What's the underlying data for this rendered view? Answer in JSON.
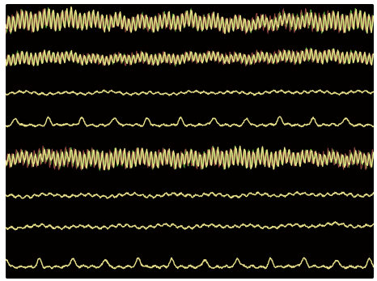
{
  "colors": {
    "background": "#020100",
    "frame": "#ffffff",
    "trace": "#e9e08a",
    "overlay_green": "#5fb83a",
    "overlay_red": "#c9605a"
  },
  "chart_data": {
    "type": "line",
    "title": "",
    "xlabel": "",
    "ylabel": "",
    "grid": false,
    "legend": "none",
    "n_channels": 8,
    "x_range": [
      0,
      100
    ],
    "channels": [
      {
        "index": 0,
        "rhythm": "fast-high-amplitude",
        "overlay": true,
        "amplitude": 1.0,
        "x": [
          0,
          5,
          10,
          15,
          20,
          25,
          30,
          35,
          40,
          45,
          50,
          55,
          60,
          65,
          70,
          75,
          80,
          85,
          90,
          95,
          100
        ],
        "baseline": [
          0.2,
          0.5,
          0.7,
          0.9,
          0.8,
          0.5,
          0.3,
          0.1,
          0.2,
          0.4,
          0.7,
          0.3,
          0.0,
          -0.2,
          0.1,
          0.5,
          0.6,
          0.4,
          0.3,
          0.5,
          0.4
        ]
      },
      {
        "index": 1,
        "rhythm": "fast-moderate",
        "overlay": true,
        "amplitude": 0.65,
        "x": [
          0,
          5,
          10,
          15,
          20,
          25,
          30,
          35,
          40,
          45,
          50,
          55,
          60,
          65,
          70,
          75,
          80,
          85,
          90,
          95,
          100
        ],
        "baseline": [
          0.0,
          0.1,
          0.3,
          0.5,
          0.2,
          -0.1,
          0.0,
          0.2,
          0.1,
          0.0,
          0.3,
          0.5,
          0.2,
          0.1,
          0.3,
          0.4,
          0.6,
          0.7,
          0.5,
          0.3,
          0.2
        ]
      },
      {
        "index": 2,
        "rhythm": "low-amplitude",
        "overlay": false,
        "amplitude": 0.3,
        "x": [
          0,
          5,
          10,
          15,
          20,
          25,
          30,
          35,
          40,
          45,
          50,
          55,
          60,
          65,
          70,
          75,
          80,
          85,
          90,
          95,
          100
        ],
        "baseline": [
          0.0,
          0.1,
          0.0,
          -0.1,
          0.0,
          0.2,
          0.1,
          0.0,
          -0.1,
          0.0,
          0.1,
          0.2,
          0.1,
          0.0,
          0.1,
          0.2,
          0.3,
          0.2,
          0.1,
          0.2,
          0.1
        ]
      },
      {
        "index": 3,
        "rhythm": "slow-waves",
        "overlay": false,
        "amplitude": 0.5,
        "x": [
          0,
          5,
          10,
          15,
          20,
          25,
          30,
          35,
          40,
          45,
          50,
          55,
          60,
          65,
          70,
          75,
          80,
          85,
          90,
          95,
          100
        ],
        "baseline": [
          0.0,
          0.1,
          0.0,
          0.2,
          0.1,
          0.0,
          0.2,
          0.1,
          0.0,
          0.1,
          0.0,
          0.2,
          0.1,
          0.0,
          0.1,
          0.3,
          0.0,
          0.1,
          0.2,
          0.1,
          0.0
        ]
      },
      {
        "index": 4,
        "rhythm": "fast-high-amplitude",
        "overlay": true,
        "amplitude": 1.0,
        "x": [
          0,
          5,
          10,
          15,
          20,
          25,
          30,
          35,
          40,
          45,
          50,
          55,
          60,
          65,
          70,
          75,
          80,
          85,
          90,
          95,
          100
        ],
        "baseline": [
          0.0,
          0.1,
          0.3,
          0.2,
          0.0,
          -0.2,
          0.0,
          0.2,
          0.1,
          0.0,
          -0.1,
          0.1,
          0.3,
          0.2,
          0.0,
          0.1,
          0.3,
          0.2,
          0.0,
          -0.1,
          0.0
        ]
      },
      {
        "index": 5,
        "rhythm": "low-amplitude",
        "overlay": false,
        "amplitude": 0.35,
        "x": [
          0,
          5,
          10,
          15,
          20,
          25,
          30,
          35,
          40,
          45,
          50,
          55,
          60,
          65,
          70,
          75,
          80,
          85,
          90,
          95,
          100
        ],
        "baseline": [
          0.0,
          0.0,
          0.1,
          0.2,
          0.1,
          0.0,
          0.1,
          0.2,
          0.1,
          0.2,
          0.3,
          0.2,
          0.1,
          0.2,
          0.3,
          0.2,
          0.3,
          0.4,
          0.3,
          0.2,
          0.3
        ]
      },
      {
        "index": 6,
        "rhythm": "low-amplitude",
        "overlay": false,
        "amplitude": 0.35,
        "x": [
          0,
          5,
          10,
          15,
          20,
          25,
          30,
          35,
          40,
          45,
          50,
          55,
          60,
          65,
          70,
          75,
          80,
          85,
          90,
          95,
          100
        ],
        "baseline": [
          -0.2,
          0.0,
          0.1,
          0.0,
          -0.1,
          0.0,
          0.1,
          0.0,
          0.1,
          0.2,
          0.0,
          0.1,
          0.2,
          0.1,
          0.0,
          0.1,
          0.2,
          0.3,
          0.5,
          0.2,
          0.1
        ]
      },
      {
        "index": 7,
        "rhythm": "slow-waves",
        "overlay": false,
        "amplitude": 0.55,
        "x": [
          0,
          5,
          10,
          15,
          20,
          25,
          30,
          35,
          40,
          45,
          50,
          55,
          60,
          65,
          70,
          75,
          80,
          85,
          90,
          95,
          100
        ],
        "baseline": [
          0.0,
          0.1,
          0.0,
          0.1,
          0.2,
          0.1,
          0.0,
          0.2,
          0.1,
          0.0,
          0.1,
          0.0,
          0.1,
          0.2,
          0.0,
          0.1,
          0.3,
          0.1,
          0.0,
          0.1,
          0.0
        ]
      }
    ]
  }
}
